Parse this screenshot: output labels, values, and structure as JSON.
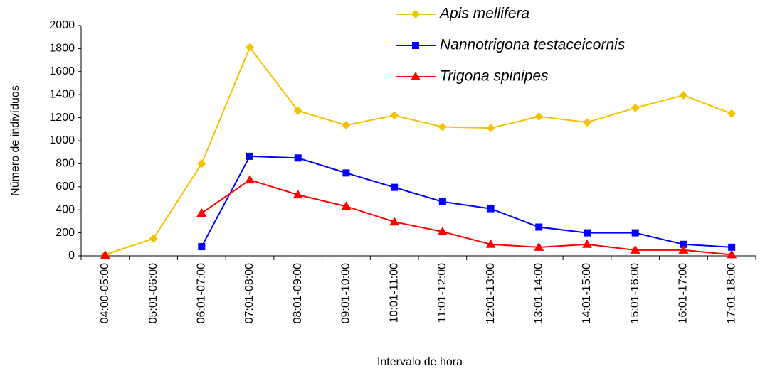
{
  "chart_data": {
    "type": "line",
    "categories": [
      "04:00-05:00",
      "05:01-06:00",
      "06:01-07:00",
      "07:01-08:00",
      "08:01-09:00",
      "09:01-10:00",
      "10:01-11:00",
      "11:01-12:00",
      "12:01-13:00",
      "13:01-14:00",
      "14:01-15:00",
      "15:01-16:00",
      "16:01-17:00",
      "17:01-18:00"
    ],
    "series": [
      {
        "name": "Apis mellifera",
        "color": "#f2c200",
        "marker": "diamond",
        "values": [
          10,
          150,
          800,
          1810,
          1260,
          1135,
          1220,
          1120,
          1110,
          1210,
          1160,
          1285,
          1395,
          1235
        ]
      },
      {
        "name": "Nannotrigona testaceicornis",
        "color": "#0000ff",
        "marker": "square",
        "values": [
          null,
          null,
          80,
          865,
          850,
          720,
          595,
          470,
          410,
          250,
          200,
          200,
          100,
          75
        ]
      },
      {
        "name": "Trigona spinipes",
        "color": "#ff0000",
        "marker": "triangle",
        "values": [
          5,
          null,
          370,
          660,
          530,
          430,
          295,
          210,
          100,
          75,
          100,
          50,
          50,
          10
        ]
      }
    ],
    "xlabel": "Intervalo de hora",
    "ylabel": "Número de indivíduos",
    "ylim": [
      0,
      2000
    ],
    "yticks": [
      0,
      200,
      400,
      600,
      800,
      1000,
      1200,
      1400,
      1600,
      1800,
      2000
    ],
    "legend": "top-right"
  }
}
